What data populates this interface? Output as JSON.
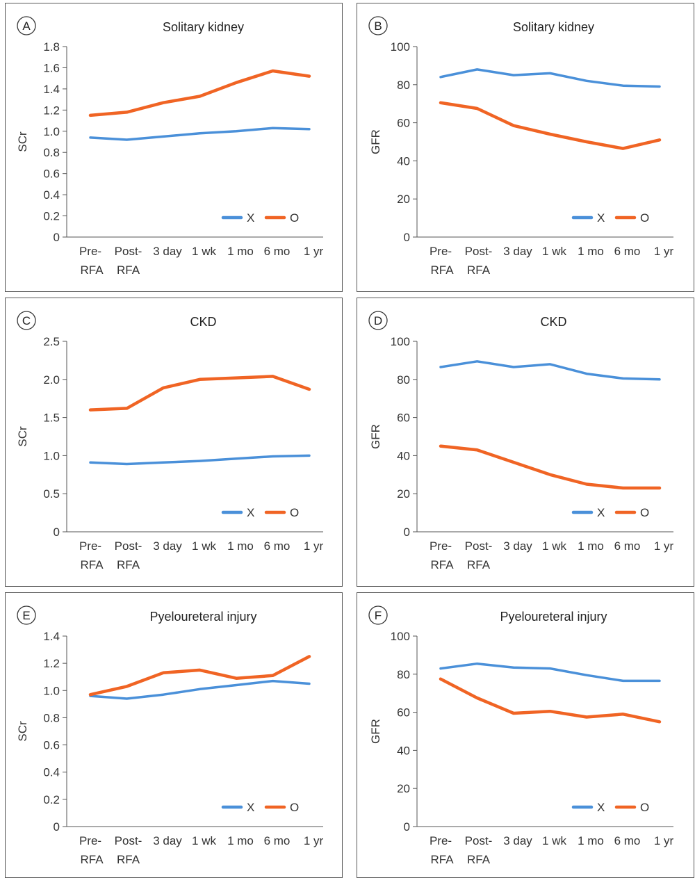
{
  "colors": {
    "X": "#4a90d9",
    "O": "#f06424"
  },
  "chart_data": [
    {
      "panel": "A",
      "type": "line",
      "title": "Solitary kidney",
      "ylabel": "SCr",
      "categories": [
        "Pre-RFA",
        "Post-RFA",
        "3 day",
        "1 wk",
        "1 mo",
        "6 mo",
        "1 yr"
      ],
      "yticks": [
        "0",
        "0.2",
        "0.4",
        "0.6",
        "0.8",
        "1.0",
        "1.2",
        "1.4",
        "1.6",
        "1.8"
      ],
      "ylim": [
        0,
        1.8
      ],
      "series": [
        {
          "name": "X",
          "values": [
            0.94,
            0.92,
            0.95,
            0.98,
            1.0,
            1.03,
            1.02
          ]
        },
        {
          "name": "O",
          "values": [
            1.15,
            1.18,
            1.27,
            1.33,
            1.46,
            1.57,
            1.52
          ]
        }
      ]
    },
    {
      "panel": "B",
      "type": "line",
      "title": "Solitary kidney",
      "ylabel": "GFR",
      "categories": [
        "Pre-RFA",
        "Post-RFA",
        "3 day",
        "1 wk",
        "1 mo",
        "6 mo",
        "1 yr"
      ],
      "yticks": [
        "0",
        "20",
        "40",
        "60",
        "80",
        "100"
      ],
      "ylim": [
        0,
        100
      ],
      "series": [
        {
          "name": "X",
          "values": [
            84,
            88,
            85,
            86,
            82,
            79.5,
            79
          ]
        },
        {
          "name": "O",
          "values": [
            70.5,
            67.5,
            58.5,
            54,
            50,
            46.5,
            51
          ]
        }
      ]
    },
    {
      "panel": "C",
      "type": "line",
      "title": "CKD",
      "ylabel": "SCr",
      "categories": [
        "Pre-RFA",
        "Post-RFA",
        "3 day",
        "1 wk",
        "1 mo",
        "6 mo",
        "1 yr"
      ],
      "yticks": [
        "0",
        "0.5",
        "1.0",
        "1.5",
        "2.0",
        "2.5"
      ],
      "ylim": [
        0,
        2.5
      ],
      "series": [
        {
          "name": "X",
          "values": [
            0.91,
            0.89,
            0.91,
            0.93,
            0.96,
            0.99,
            1.0
          ]
        },
        {
          "name": "O",
          "values": [
            1.6,
            1.62,
            1.89,
            2.0,
            2.02,
            2.04,
            1.87
          ]
        }
      ]
    },
    {
      "panel": "D",
      "type": "line",
      "title": "CKD",
      "ylabel": "GFR",
      "categories": [
        "Pre-RFA",
        "Post-RFA",
        "3 day",
        "1 wk",
        "1 mo",
        "6 mo",
        "1 yr"
      ],
      "yticks": [
        "0",
        "20",
        "40",
        "60",
        "80",
        "100"
      ],
      "ylim": [
        0,
        100
      ],
      "series": [
        {
          "name": "X",
          "values": [
            86.5,
            89.5,
            86.5,
            88,
            83,
            80.5,
            80
          ]
        },
        {
          "name": "O",
          "values": [
            45,
            43,
            36.5,
            30,
            25,
            23,
            23
          ]
        }
      ]
    },
    {
      "panel": "E",
      "type": "line",
      "title": "Pyeloureteral injury",
      "ylabel": "SCr",
      "categories": [
        "Pre-RFA",
        "Post-RFA",
        "3 day",
        "1 wk",
        "1 mo",
        "6 mo",
        "1 yr"
      ],
      "yticks": [
        "0",
        "0.2",
        "0.4",
        "0.6",
        "0.8",
        "1.0",
        "1.2",
        "1.4"
      ],
      "ylim": [
        0,
        1.4
      ],
      "series": [
        {
          "name": "X",
          "values": [
            0.96,
            0.94,
            0.97,
            1.01,
            1.04,
            1.07,
            1.05
          ]
        },
        {
          "name": "O",
          "values": [
            0.97,
            1.03,
            1.13,
            1.15,
            1.09,
            1.11,
            1.25
          ]
        }
      ]
    },
    {
      "panel": "F",
      "type": "line",
      "title": "Pyeloureteral injury",
      "ylabel": "GFR",
      "categories": [
        "Pre-RFA",
        "Post-RFA",
        "3 day",
        "1 wk",
        "1 mo",
        "6 mo",
        "1 yr"
      ],
      "yticks": [
        "0",
        "20",
        "40",
        "60",
        "80",
        "100"
      ],
      "ylim": [
        0,
        100
      ],
      "series": [
        {
          "name": "X",
          "values": [
            83,
            85.5,
            83.5,
            83,
            79.5,
            76.5,
            76.5
          ]
        },
        {
          "name": "O",
          "values": [
            77.5,
            67.5,
            59.5,
            60.5,
            57.5,
            59,
            55
          ]
        }
      ]
    }
  ]
}
